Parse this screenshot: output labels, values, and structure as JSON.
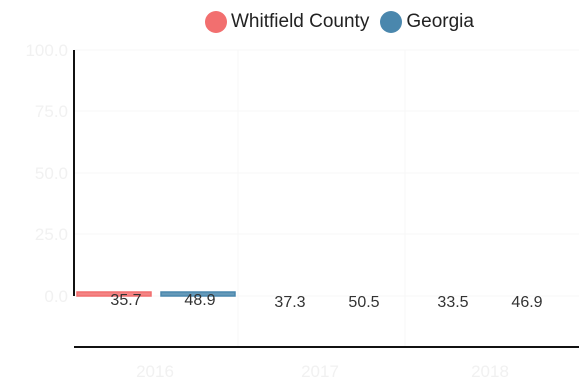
{
  "chart_data": {
    "type": "bar",
    "categories": [
      "2016",
      "2017",
      "2018"
    ],
    "series": [
      {
        "name": "Whitfield County",
        "color": "#f26f6f",
        "values": [
          35.7,
          37.3,
          33.5
        ]
      },
      {
        "name": "Georgia",
        "color": "#4a87ad",
        "values": [
          48.9,
          50.5,
          46.9
        ]
      }
    ],
    "ylim": [
      0,
      100
    ],
    "yticks": [
      "0.0",
      "25.0",
      "50.0",
      "75.0",
      "100.0"
    ],
    "xlabel": "",
    "ylabel": "",
    "legend": "top-center",
    "grid": true,
    "bars_rendered_height": 0
  }
}
